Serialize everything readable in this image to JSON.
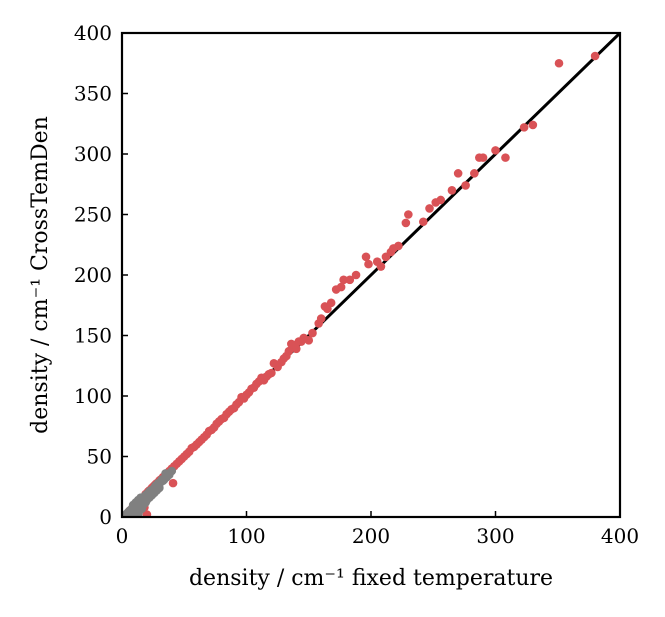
{
  "chart_data": {
    "type": "scatter",
    "xlabel": "density / cm⁻¹ fixed temperature",
    "ylabel": "density / cm⁻¹ CrossTemDen",
    "xlim": [
      0,
      400
    ],
    "ylim": [
      0,
      400
    ],
    "xticks": [
      "0",
      "100",
      "200",
      "300",
      "400"
    ],
    "yticks": [
      "0",
      "50",
      "100",
      "150",
      "200",
      "250",
      "300",
      "350",
      "400"
    ],
    "grid": false,
    "reference_line": {
      "from": [
        0,
        0
      ],
      "to": [
        400,
        400
      ],
      "color": "#000000"
    },
    "series": [
      {
        "color": "#d95256",
        "points": [
          [
            380,
            381
          ],
          [
            351,
            375
          ],
          [
            330,
            324
          ],
          [
            323,
            322
          ],
          [
            308,
            297
          ],
          [
            300,
            303
          ],
          [
            290,
            297
          ],
          [
            287,
            297
          ],
          [
            283,
            284
          ],
          [
            276,
            274
          ],
          [
            270,
            284
          ],
          [
            265,
            270
          ],
          [
            256,
            262
          ],
          [
            252,
            260
          ],
          [
            247,
            255
          ],
          [
            242,
            244
          ],
          [
            230,
            250
          ],
          [
            228,
            243
          ],
          [
            222,
            224
          ],
          [
            218,
            222
          ],
          [
            216,
            219
          ],
          [
            212,
            215
          ],
          [
            208,
            207
          ],
          [
            205,
            211
          ],
          [
            198,
            209
          ],
          [
            196,
            215
          ],
          [
            188,
            200
          ],
          [
            183,
            196
          ],
          [
            178,
            196
          ],
          [
            176,
            190
          ],
          [
            172,
            188
          ],
          [
            168,
            177
          ],
          [
            165,
            172
          ],
          [
            163,
            174
          ],
          [
            160,
            164
          ],
          [
            158,
            160
          ],
          [
            153,
            152
          ],
          [
            150,
            146
          ],
          [
            146,
            148
          ],
          [
            144,
            145
          ],
          [
            142,
            145
          ],
          [
            140,
            139
          ],
          [
            138,
            142
          ],
          [
            136,
            143
          ],
          [
            134,
            137
          ],
          [
            132,
            133
          ],
          [
            130,
            131
          ],
          [
            128,
            128
          ],
          [
            125,
            124
          ],
          [
            122,
            127
          ],
          [
            120,
            119
          ],
          [
            118,
            118
          ],
          [
            116,
            116
          ],
          [
            114,
            113
          ],
          [
            112,
            115
          ],
          [
            110,
            112
          ],
          [
            108,
            110
          ],
          [
            106,
            107
          ],
          [
            104,
            106
          ],
          [
            102,
            103
          ],
          [
            100,
            101
          ],
          [
            98,
            98
          ],
          [
            96,
            99
          ],
          [
            94,
            95
          ],
          [
            92,
            93
          ],
          [
            90,
            90
          ],
          [
            88,
            89
          ],
          [
            86,
            87
          ],
          [
            84,
            85
          ],
          [
            82,
            82
          ],
          [
            80,
            81
          ],
          [
            78,
            79
          ],
          [
            76,
            77
          ],
          [
            74,
            74
          ],
          [
            72,
            72
          ],
          [
            70,
            71
          ],
          [
            68,
            68
          ],
          [
            66,
            66
          ],
          [
            64,
            64
          ],
          [
            62,
            62
          ],
          [
            60,
            60
          ],
          [
            58,
            58
          ],
          [
            56,
            57
          ],
          [
            54,
            54
          ],
          [
            52,
            52
          ],
          [
            50,
            50
          ],
          [
            48,
            48
          ],
          [
            46,
            46
          ],
          [
            44,
            44
          ],
          [
            42,
            42
          ],
          [
            41,
            28
          ],
          [
            40,
            40
          ],
          [
            38,
            38
          ],
          [
            36,
            36
          ],
          [
            35,
            35
          ],
          [
            33,
            33
          ],
          [
            31,
            31
          ],
          [
            30,
            30
          ],
          [
            28,
            28
          ],
          [
            27,
            27
          ],
          [
            26,
            26
          ],
          [
            25,
            25
          ],
          [
            24,
            24
          ],
          [
            23,
            22
          ],
          [
            22,
            22
          ],
          [
            21,
            21
          ],
          [
            20,
            19
          ],
          [
            20,
            2
          ],
          [
            19,
            19
          ],
          [
            18,
            17
          ],
          [
            18,
            8
          ],
          [
            17,
            16
          ],
          [
            16,
            15
          ],
          [
            15,
            14
          ],
          [
            14,
            13
          ],
          [
            12,
            11
          ],
          [
            10,
            9
          ],
          [
            8,
            7
          ],
          [
            6,
            5
          ]
        ]
      },
      {
        "color": "#808080",
        "points": [
          [
            40,
            38
          ],
          [
            38,
            35
          ],
          [
            36,
            33
          ],
          [
            35,
            36
          ],
          [
            34,
            31
          ],
          [
            33,
            30
          ],
          [
            32,
            31
          ],
          [
            31,
            29
          ],
          [
            30,
            27
          ],
          [
            29,
            28
          ],
          [
            28,
            25
          ],
          [
            27,
            26
          ],
          [
            26,
            24
          ],
          [
            25,
            23
          ],
          [
            24,
            22
          ],
          [
            23,
            22
          ],
          [
            22,
            21
          ],
          [
            21,
            19
          ],
          [
            20,
            19
          ],
          [
            19,
            18
          ],
          [
            18,
            17
          ],
          [
            17,
            16
          ],
          [
            16,
            15
          ],
          [
            15,
            16
          ],
          [
            15,
            13
          ],
          [
            14,
            13
          ],
          [
            13,
            12
          ],
          [
            13,
            14
          ],
          [
            12,
            11
          ],
          [
            12,
            10
          ],
          [
            11,
            10
          ],
          [
            11,
            12
          ],
          [
            10,
            9
          ],
          [
            10,
            8
          ],
          [
            9,
            8
          ],
          [
            9,
            10
          ],
          [
            8,
            7
          ],
          [
            8,
            6
          ],
          [
            7,
            6
          ],
          [
            7,
            5
          ],
          [
            6,
            5
          ],
          [
            6,
            4
          ],
          [
            5,
            4
          ],
          [
            5,
            3
          ],
          [
            4,
            3
          ],
          [
            4,
            2
          ],
          [
            3,
            2
          ],
          [
            3,
            1
          ],
          [
            2,
            1
          ],
          [
            14,
            5
          ],
          [
            16,
            7
          ],
          [
            12,
            4
          ],
          [
            20,
            14
          ],
          [
            22,
            16
          ],
          [
            17,
            10
          ],
          [
            19,
            12
          ],
          [
            24,
            18
          ],
          [
            26,
            20
          ],
          [
            28,
            22
          ],
          [
            30,
            24
          ],
          [
            9,
            3
          ],
          [
            11,
            6
          ],
          [
            15,
            9
          ],
          [
            18,
            11
          ],
          [
            10,
            1
          ],
          [
            13,
            2
          ]
        ]
      }
    ]
  }
}
